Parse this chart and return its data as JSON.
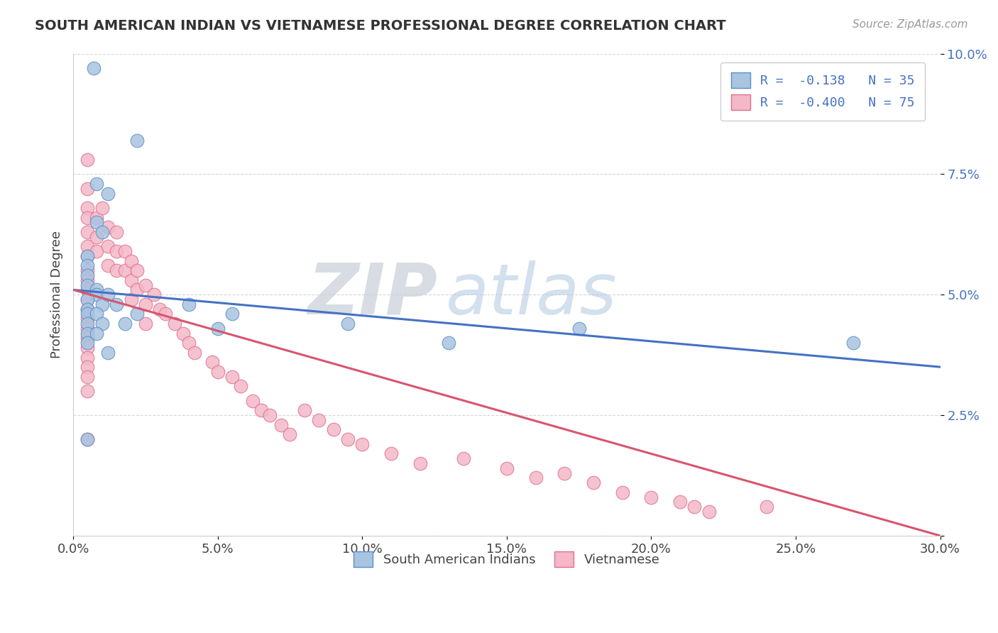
{
  "title": "SOUTH AMERICAN INDIAN VS VIETNAMESE PROFESSIONAL DEGREE CORRELATION CHART",
  "source_text": "Source: ZipAtlas.com",
  "ylabel": "Professional Degree",
  "xlim": [
    0.0,
    0.3
  ],
  "ylim": [
    0.0,
    0.1
  ],
  "xticks": [
    0.0,
    0.05,
    0.1,
    0.15,
    0.2,
    0.25,
    0.3
  ],
  "xticklabels": [
    "0.0%",
    "5.0%",
    "10.0%",
    "15.0%",
    "20.0%",
    "25.0%",
    "30.0%"
  ],
  "yticks": [
    0.0,
    0.025,
    0.05,
    0.075,
    0.1
  ],
  "yticklabels": [
    "",
    "2.5%",
    "5.0%",
    "7.5%",
    "10.0%"
  ],
  "blue_color": "#a8c4e0",
  "blue_edge": "#5b8fc9",
  "pink_color": "#f4b8c8",
  "pink_edge": "#e07090",
  "blue_line_color": "#4472c4",
  "pink_line_color": "#d9546e",
  "legend_blue_label": "R =  -0.138   N = 35",
  "legend_pink_label": "R =  -0.400   N = 75",
  "legend_bottom_blue": "South American Indians",
  "legend_bottom_pink": "Vietnamese",
  "watermark_zip": "ZIP",
  "watermark_atlas": "atlas",
  "blue_scatter_x": [
    0.007,
    0.022,
    0.008,
    0.012,
    0.008,
    0.01,
    0.005,
    0.005,
    0.005,
    0.005,
    0.008,
    0.008,
    0.005,
    0.005,
    0.005,
    0.005,
    0.005,
    0.005,
    0.012,
    0.01,
    0.008,
    0.01,
    0.008,
    0.012,
    0.015,
    0.018,
    0.022,
    0.04,
    0.055,
    0.05,
    0.095,
    0.13,
    0.175,
    0.27,
    0.005
  ],
  "blue_scatter_y": [
    0.097,
    0.082,
    0.073,
    0.071,
    0.065,
    0.063,
    0.058,
    0.056,
    0.054,
    0.052,
    0.051,
    0.05,
    0.049,
    0.047,
    0.046,
    0.044,
    0.042,
    0.04,
    0.038,
    0.048,
    0.046,
    0.044,
    0.042,
    0.05,
    0.048,
    0.044,
    0.046,
    0.048,
    0.046,
    0.043,
    0.044,
    0.04,
    0.043,
    0.04,
    0.02
  ],
  "pink_scatter_x": [
    0.005,
    0.005,
    0.005,
    0.005,
    0.005,
    0.005,
    0.005,
    0.005,
    0.005,
    0.005,
    0.005,
    0.005,
    0.005,
    0.005,
    0.005,
    0.005,
    0.005,
    0.005,
    0.005,
    0.005,
    0.008,
    0.008,
    0.008,
    0.01,
    0.012,
    0.012,
    0.012,
    0.015,
    0.015,
    0.015,
    0.018,
    0.018,
    0.02,
    0.02,
    0.02,
    0.022,
    0.022,
    0.025,
    0.025,
    0.025,
    0.028,
    0.03,
    0.032,
    0.035,
    0.038,
    0.04,
    0.042,
    0.048,
    0.05,
    0.055,
    0.058,
    0.062,
    0.065,
    0.068,
    0.072,
    0.075,
    0.08,
    0.085,
    0.09,
    0.095,
    0.1,
    0.11,
    0.12,
    0.135,
    0.15,
    0.16,
    0.17,
    0.18,
    0.19,
    0.2,
    0.21,
    0.215,
    0.22,
    0.24,
    0.005
  ],
  "pink_scatter_y": [
    0.078,
    0.072,
    0.068,
    0.066,
    0.063,
    0.06,
    0.058,
    0.055,
    0.053,
    0.051,
    0.049,
    0.047,
    0.045,
    0.043,
    0.041,
    0.039,
    0.037,
    0.035,
    0.033,
    0.03,
    0.066,
    0.062,
    0.059,
    0.068,
    0.064,
    0.06,
    0.056,
    0.063,
    0.059,
    0.055,
    0.059,
    0.055,
    0.057,
    0.053,
    0.049,
    0.055,
    0.051,
    0.052,
    0.048,
    0.044,
    0.05,
    0.047,
    0.046,
    0.044,
    0.042,
    0.04,
    0.038,
    0.036,
    0.034,
    0.033,
    0.031,
    0.028,
    0.026,
    0.025,
    0.023,
    0.021,
    0.026,
    0.024,
    0.022,
    0.02,
    0.019,
    0.017,
    0.015,
    0.016,
    0.014,
    0.012,
    0.013,
    0.011,
    0.009,
    0.008,
    0.007,
    0.006,
    0.005,
    0.006,
    0.02
  ],
  "blue_trend_x": [
    0.0,
    0.3
  ],
  "blue_trend_y_start": 0.051,
  "blue_trend_y_end": 0.035,
  "pink_trend_x": [
    0.0,
    0.3
  ],
  "pink_trend_y_start": 0.051,
  "pink_trend_y_end": 0.0
}
